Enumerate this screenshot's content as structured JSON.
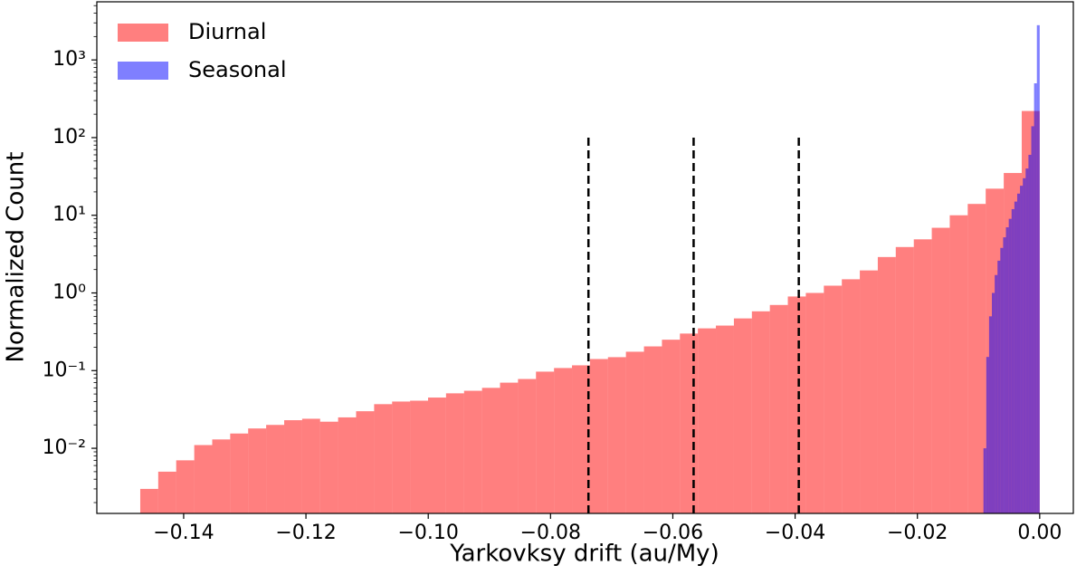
{
  "chart_data": {
    "type": "histogram",
    "xlabel": "Yarkovksy drift (au/My)",
    "ylabel": "Normalized Count",
    "xlim": [
      -0.1542,
      0.0055
    ],
    "ylim": [
      0.00145,
      5600
    ],
    "yscale": "log",
    "legend": "upper left",
    "xticks": [
      {
        "value": -0.14,
        "label": "−0.14"
      },
      {
        "value": -0.12,
        "label": "−0.12"
      },
      {
        "value": -0.1,
        "label": "−0.10"
      },
      {
        "value": -0.08,
        "label": "−0.08"
      },
      {
        "value": -0.06,
        "label": "−0.06"
      },
      {
        "value": -0.04,
        "label": "−0.04"
      },
      {
        "value": -0.02,
        "label": "−0.02"
      },
      {
        "value": 0,
        "label": "0.00"
      }
    ],
    "yticks": [
      {
        "value": 0.01,
        "label": "10⁻²"
      },
      {
        "value": 0.1,
        "label": "10⁻¹"
      },
      {
        "value": 1,
        "label": "10⁰"
      },
      {
        "value": 10,
        "label": "10¹"
      },
      {
        "value": 100,
        "label": "10²"
      },
      {
        "value": 1000,
        "label": "10³"
      }
    ],
    "series": [
      {
        "name": "Diurnal",
        "color": "#ff0000",
        "opacity": 0.5,
        "bins": [
          -0.1471,
          -0.14416,
          -0.14122,
          -0.13827,
          -0.13533,
          -0.13239,
          -0.12945,
          -0.12651,
          -0.12356,
          -0.12062,
          -0.11768,
          -0.11474,
          -0.1118,
          -0.10885,
          -0.10591,
          -0.10297,
          -0.10003,
          -0.09709,
          -0.09414,
          -0.0912,
          -0.08826,
          -0.08532,
          -0.08238,
          -0.07943,
          -0.07649,
          -0.07355,
          -0.07061,
          -0.06767,
          -0.06472,
          -0.06178,
          -0.05884,
          -0.0559,
          -0.05296,
          -0.05001,
          -0.04707,
          -0.04413,
          -0.04119,
          -0.03825,
          -0.0353,
          -0.03236,
          -0.02942,
          -0.02648,
          -0.02354,
          -0.02059,
          -0.01765,
          -0.01471,
          -0.01177,
          -0.00883,
          -0.00588,
          -0.00294,
          0
        ],
        "values": [
          0.003,
          0.005,
          0.007,
          0.011,
          0.013,
          0.0155,
          0.018,
          0.02,
          0.023,
          0.024,
          0.022,
          0.025,
          0.03,
          0.037,
          0.04,
          0.041,
          0.045,
          0.051,
          0.055,
          0.06,
          0.07,
          0.078,
          0.097,
          0.108,
          0.117,
          0.141,
          0.149,
          0.175,
          0.205,
          0.25,
          0.3,
          0.35,
          0.38,
          0.47,
          0.58,
          0.7,
          0.9,
          1.0,
          1.24,
          1.5,
          1.95,
          2.9,
          3.9,
          4.9,
          6.9,
          10,
          14,
          22,
          35,
          220
        ]
      },
      {
        "name": "Seasonal",
        "color": "#0000ff",
        "opacity": 0.5,
        "bins": [
          -0.0092,
          -0.00874,
          -0.00828,
          -0.00782,
          -0.00736,
          -0.0069,
          -0.00644,
          -0.00598,
          -0.00552,
          -0.00506,
          -0.0046,
          -0.00414,
          -0.00368,
          -0.00322,
          -0.00276,
          -0.0023,
          -0.00184,
          -0.00138,
          -0.00092,
          -0.00046,
          0
        ],
        "values": [
          0.01,
          0.15,
          0.5,
          1.0,
          1.7,
          2.6,
          3.8,
          5.2,
          7,
          9,
          12,
          15,
          19,
          24,
          30,
          40,
          60,
          140,
          500,
          2800
        ]
      }
    ],
    "vlines": [
      {
        "x": -0.0738,
        "ymax": 100
      },
      {
        "x": -0.0566,
        "ymax": 100
      },
      {
        "x": -0.0394,
        "ymax": 100
      }
    ]
  }
}
